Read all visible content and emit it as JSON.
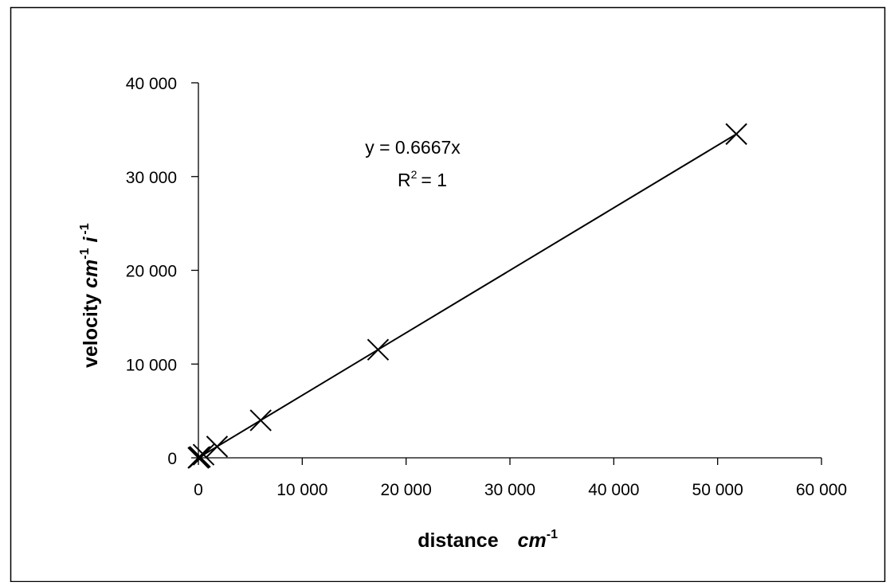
{
  "chart_data": {
    "type": "scatter",
    "title": "",
    "xlabel": {
      "text": "distance",
      "unit": "cm",
      "unit_exponent": "-1"
    },
    "ylabel": {
      "text": "velocity",
      "unit": "cm",
      "unit_exponent": "-1",
      "unit2": "i",
      "unit2_exponent": "-1"
    },
    "xlim": [
      0,
      60000
    ],
    "ylim": [
      0,
      40000
    ],
    "x_ticks": [
      0,
      10000,
      20000,
      30000,
      40000,
      50000,
      60000
    ],
    "x_tick_labels": [
      "0",
      "10 000",
      "20 000",
      "30 000",
      "40 000",
      "50 000",
      "60 000"
    ],
    "y_ticks": [
      0,
      10000,
      20000,
      30000,
      40000
    ],
    "y_tick_labels": [
      "0",
      "10 000",
      "20 000",
      "30 000",
      "40 000"
    ],
    "grid": false,
    "legend": "none",
    "marker": "x",
    "series": [
      {
        "x": [
          0,
          50,
          150,
          500,
          1800,
          6000,
          17300,
          51800
        ],
        "y": [
          0,
          33,
          100,
          333,
          1200,
          4000,
          11533,
          34533
        ]
      }
    ],
    "trendline": {
      "type": "linear",
      "slope": 0.6667,
      "intercept": 0,
      "equation": "y = 0.6667x",
      "r_squared_label": "R",
      "r_squared_exponent": "2",
      "r_squared_value": "= 1"
    },
    "colors": {
      "marks": "#000000",
      "background": "#ffffff"
    }
  }
}
